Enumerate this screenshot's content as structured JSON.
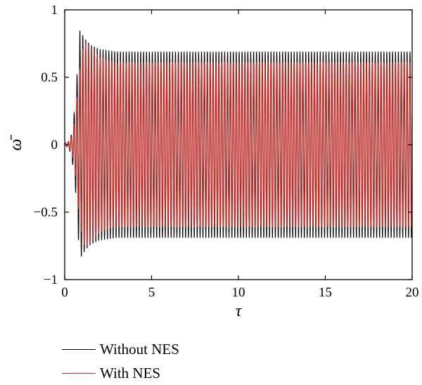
{
  "chart_data": {
    "type": "line",
    "title": "",
    "xlabel": "τ",
    "ylabel": "ω̄",
    "xlim": [
      0,
      20
    ],
    "ylim": [
      -1,
      1
    ],
    "xticks": [
      0,
      5,
      10,
      15,
      20
    ],
    "yticks": [
      -1,
      -0.5,
      0,
      0.5,
      1
    ],
    "xtick_labels": [
      "0",
      "5",
      "10",
      "15",
      "20"
    ],
    "ytick_labels": [
      "−1",
      "−0.5",
      "0",
      "0.5",
      "1"
    ],
    "grid": false,
    "legend_position": "bottom-left, below plot",
    "oscillation_cycles_per_unit_tau": 6,
    "series": [
      {
        "name": "Without NES",
        "color": "#000000",
        "envelope_tau": [
          0,
          0.2,
          0.4,
          0.6,
          0.75,
          0.85,
          1.0,
          1.2,
          1.5,
          2.0,
          2.5,
          3.0,
          3.5,
          20
        ],
        "envelope_amplitude": [
          0.01,
          0.02,
          0.08,
          0.3,
          0.6,
          0.85,
          0.82,
          0.78,
          0.74,
          0.71,
          0.7,
          0.69,
          0.69,
          0.69
        ],
        "steady_state_amplitude": 0.69
      },
      {
        "name": "With NES",
        "color": "#e0261f",
        "envelope_tau": [
          0,
          0.2,
          0.4,
          0.6,
          0.8,
          1.0,
          1.2,
          1.5,
          2.0,
          2.5,
          3.0,
          20
        ],
        "envelope_amplitude": [
          0.01,
          0.02,
          0.06,
          0.2,
          0.5,
          0.7,
          0.76,
          0.72,
          0.65,
          0.62,
          0.61,
          0.61
        ],
        "steady_state_amplitude": 0.61
      }
    ]
  }
}
